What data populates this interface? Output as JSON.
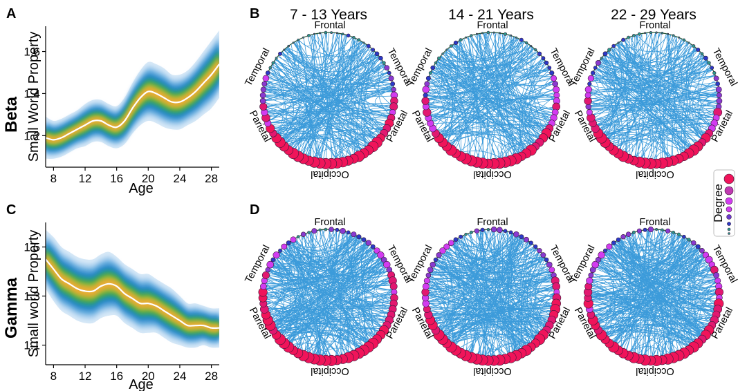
{
  "panels": {
    "a_letter": "A",
    "b_letter": "B",
    "c_letter": "C",
    "d_letter": "D"
  },
  "band_labels": {
    "beta": "Beta",
    "gamma": "Gamma"
  },
  "circle_titles": [
    "7 - 13 Years",
    "14 - 21 Years",
    "22 - 29 Years"
  ],
  "region_labels": {
    "frontal": "Frontal",
    "temporal": "Temporal",
    "parietal": "Parietal",
    "occipital": "Occipital"
  },
  "legend": {
    "title": "Degree"
  },
  "colors": {
    "connection": "#1a8ad4",
    "node_high": "#f0145a",
    "node_mid": "#d23cf0",
    "node_lowmid": "#8a3ad0",
    "node_low": "#2a3ac8",
    "node_lowest": "#2a9a8a",
    "density_outer": "#cfe4f6",
    "density_mid": "#2a86c8",
    "density_core": "#e0a82a",
    "mean_line": "#ffffff"
  },
  "chart_data": [
    {
      "type": "area",
      "panel": "A",
      "xlabel": "Age",
      "ylabel": "Small World Property",
      "xlim": [
        7,
        29
      ],
      "ylim": [
        1.05,
        1.72
      ],
      "xticks": [
        8,
        12,
        16,
        20,
        24,
        28
      ],
      "yticks": [
        1.2,
        1.4,
        1.6
      ],
      "ytick_labels": [
        "1.2",
        "1.4",
        "1.6"
      ],
      "grid": false,
      "mean_line": {
        "x": [
          7,
          8,
          9,
          10,
          11,
          12,
          13,
          14,
          15,
          16,
          17,
          18,
          19,
          20,
          21,
          22,
          23,
          24,
          25,
          26,
          27,
          28,
          29
        ],
        "y": [
          1.19,
          1.18,
          1.19,
          1.21,
          1.23,
          1.25,
          1.27,
          1.27,
          1.25,
          1.24,
          1.27,
          1.33,
          1.38,
          1.41,
          1.4,
          1.38,
          1.36,
          1.36,
          1.38,
          1.41,
          1.45,
          1.49,
          1.54
        ]
      },
      "spread": [
        0.1,
        0.09,
        0.09,
        0.09,
        0.09,
        0.1,
        0.1,
        0.1,
        0.1,
        0.1,
        0.11,
        0.12,
        0.13,
        0.14,
        0.14,
        0.14,
        0.13,
        0.13,
        0.13,
        0.14,
        0.15,
        0.16,
        0.16
      ]
    },
    {
      "type": "area",
      "panel": "C",
      "xlabel": "Age",
      "ylabel": "Small world Property",
      "xlim": [
        7,
        29
      ],
      "ylim": [
        1.02,
        1.6
      ],
      "xticks": [
        8,
        12,
        16,
        20,
        24,
        28
      ],
      "yticks": [
        1.1,
        1.3,
        1.5
      ],
      "ytick_labels": [
        "1.1",
        "1.3",
        "1.5"
      ],
      "grid": false,
      "mean_line": {
        "x": [
          7,
          8,
          9,
          10,
          11,
          12,
          13,
          14,
          15,
          16,
          17,
          18,
          19,
          20,
          21,
          22,
          23,
          24,
          25,
          26,
          27,
          28,
          29
        ],
        "y": [
          1.45,
          1.41,
          1.37,
          1.35,
          1.33,
          1.32,
          1.32,
          1.34,
          1.35,
          1.34,
          1.31,
          1.29,
          1.27,
          1.27,
          1.26,
          1.24,
          1.22,
          1.2,
          1.18,
          1.18,
          1.18,
          1.17,
          1.17
        ]
      },
      "spread": [
        0.12,
        0.13,
        0.13,
        0.13,
        0.13,
        0.13,
        0.13,
        0.13,
        0.13,
        0.12,
        0.12,
        0.12,
        0.12,
        0.12,
        0.11,
        0.11,
        0.11,
        0.1,
        0.09,
        0.09,
        0.08,
        0.08,
        0.08
      ]
    }
  ]
}
